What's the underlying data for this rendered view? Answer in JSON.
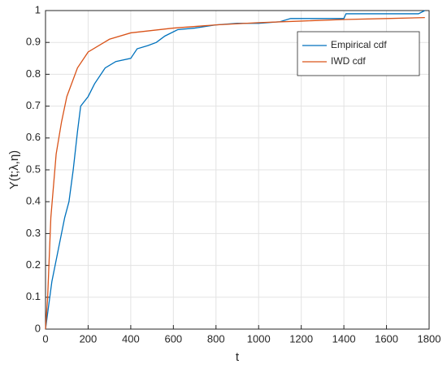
{
  "chart_data": {
    "type": "line",
    "xlabel": "t",
    "ylabel": "Y(t;λ,η)",
    "xlim": [
      0,
      1800
    ],
    "xticks": [
      0,
      200,
      400,
      600,
      800,
      1000,
      1200,
      1400,
      1600,
      1800
    ],
    "ylim": [
      0,
      1
    ],
    "yticks": [
      0,
      0.1,
      0.2,
      0.3,
      0.4,
      0.5,
      0.6,
      0.7,
      0.8,
      0.9,
      1
    ],
    "grid": true,
    "legend": "northeast",
    "series": [
      {
        "name": "Empirical cdf",
        "color": "#0072bd",
        "x": [
          0,
          10,
          30,
          60,
          90,
          110,
          130,
          150,
          165,
          200,
          230,
          280,
          330,
          400,
          430,
          480,
          520,
          560,
          620,
          700,
          800,
          900,
          1000,
          1100,
          1150,
          1400,
          1410,
          1750,
          1780
        ],
        "values": [
          0,
          0.05,
          0.15,
          0.25,
          0.35,
          0.4,
          0.5,
          0.62,
          0.7,
          0.73,
          0.77,
          0.82,
          0.84,
          0.85,
          0.88,
          0.89,
          0.9,
          0.92,
          0.94,
          0.945,
          0.955,
          0.96,
          0.96,
          0.965,
          0.975,
          0.975,
          0.99,
          0.99,
          1
        ]
      },
      {
        "name": "IWD cdf",
        "color": "#d95319",
        "x": [
          0,
          10,
          25,
          50,
          75,
          100,
          150,
          200,
          300,
          400,
          600,
          800,
          1000,
          1200,
          1400,
          1600,
          1780
        ],
        "values": [
          0,
          0.1,
          0.35,
          0.55,
          0.65,
          0.73,
          0.82,
          0.87,
          0.91,
          0.93,
          0.945,
          0.955,
          0.962,
          0.967,
          0.972,
          0.975,
          0.978
        ]
      }
    ]
  }
}
